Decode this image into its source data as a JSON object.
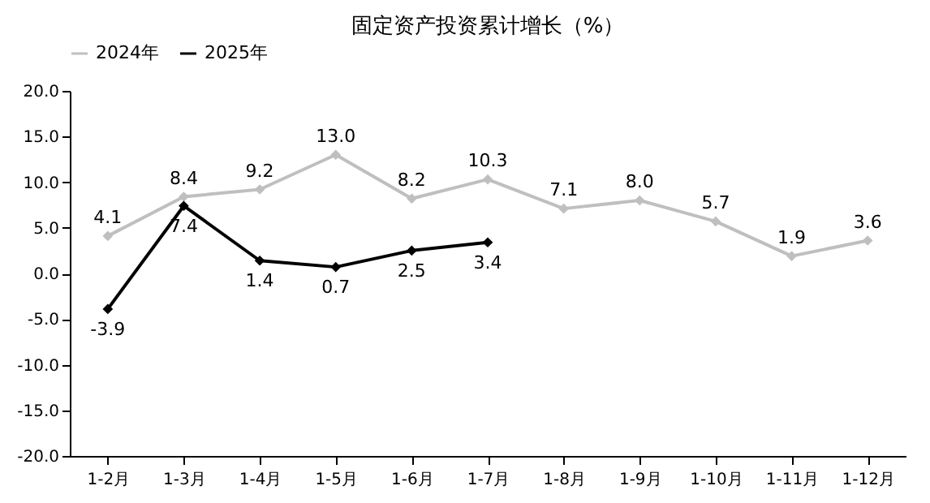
{
  "chart_data": {
    "type": "line",
    "title": "固定资产投资累计增长（%）",
    "categories": [
      "1-2月",
      "1-3月",
      "1-4月",
      "1-5月",
      "1-6月",
      "1-7月",
      "1-8月",
      "1-9月",
      "1-10月",
      "1-11月",
      "1-12月"
    ],
    "series": [
      {
        "name": "2024年",
        "color": "#bfbfbf",
        "values": [
          4.1,
          8.4,
          9.2,
          13.0,
          8.2,
          10.3,
          7.1,
          8.0,
          5.7,
          1.9,
          3.6
        ],
        "value_labels": [
          "4.1",
          "8.4",
          "9.2",
          "13.0",
          "8.2",
          "10.3",
          "7.1",
          "8.0",
          "5.7",
          "1.9",
          "3.6"
        ]
      },
      {
        "name": "2025年",
        "color": "#000000",
        "values": [
          -3.9,
          7.4,
          1.4,
          0.7,
          2.5,
          3.4,
          null,
          null,
          null,
          null,
          null
        ]
      }
    ],
    "ylim": [
      -20,
      20
    ],
    "yticks": [
      {
        "value": -20,
        "label": "-20.0"
      },
      {
        "value": -15,
        "label": "-15.0"
      },
      {
        "value": -10,
        "label": "-10.0"
      },
      {
        "value": -5,
        "label": "-5.0"
      },
      {
        "value": 0,
        "label": "0.0"
      },
      {
        "value": 5,
        "label": "5.0"
      },
      {
        "value": 10,
        "label": "10.0"
      },
      {
        "value": 15,
        "label": "15.0"
      },
      {
        "value": 20,
        "label": "20.0"
      }
    ],
    "data_labels": true,
    "grid": false,
    "legend": "top",
    "marker": "diamond",
    "line_style": "solid"
  }
}
